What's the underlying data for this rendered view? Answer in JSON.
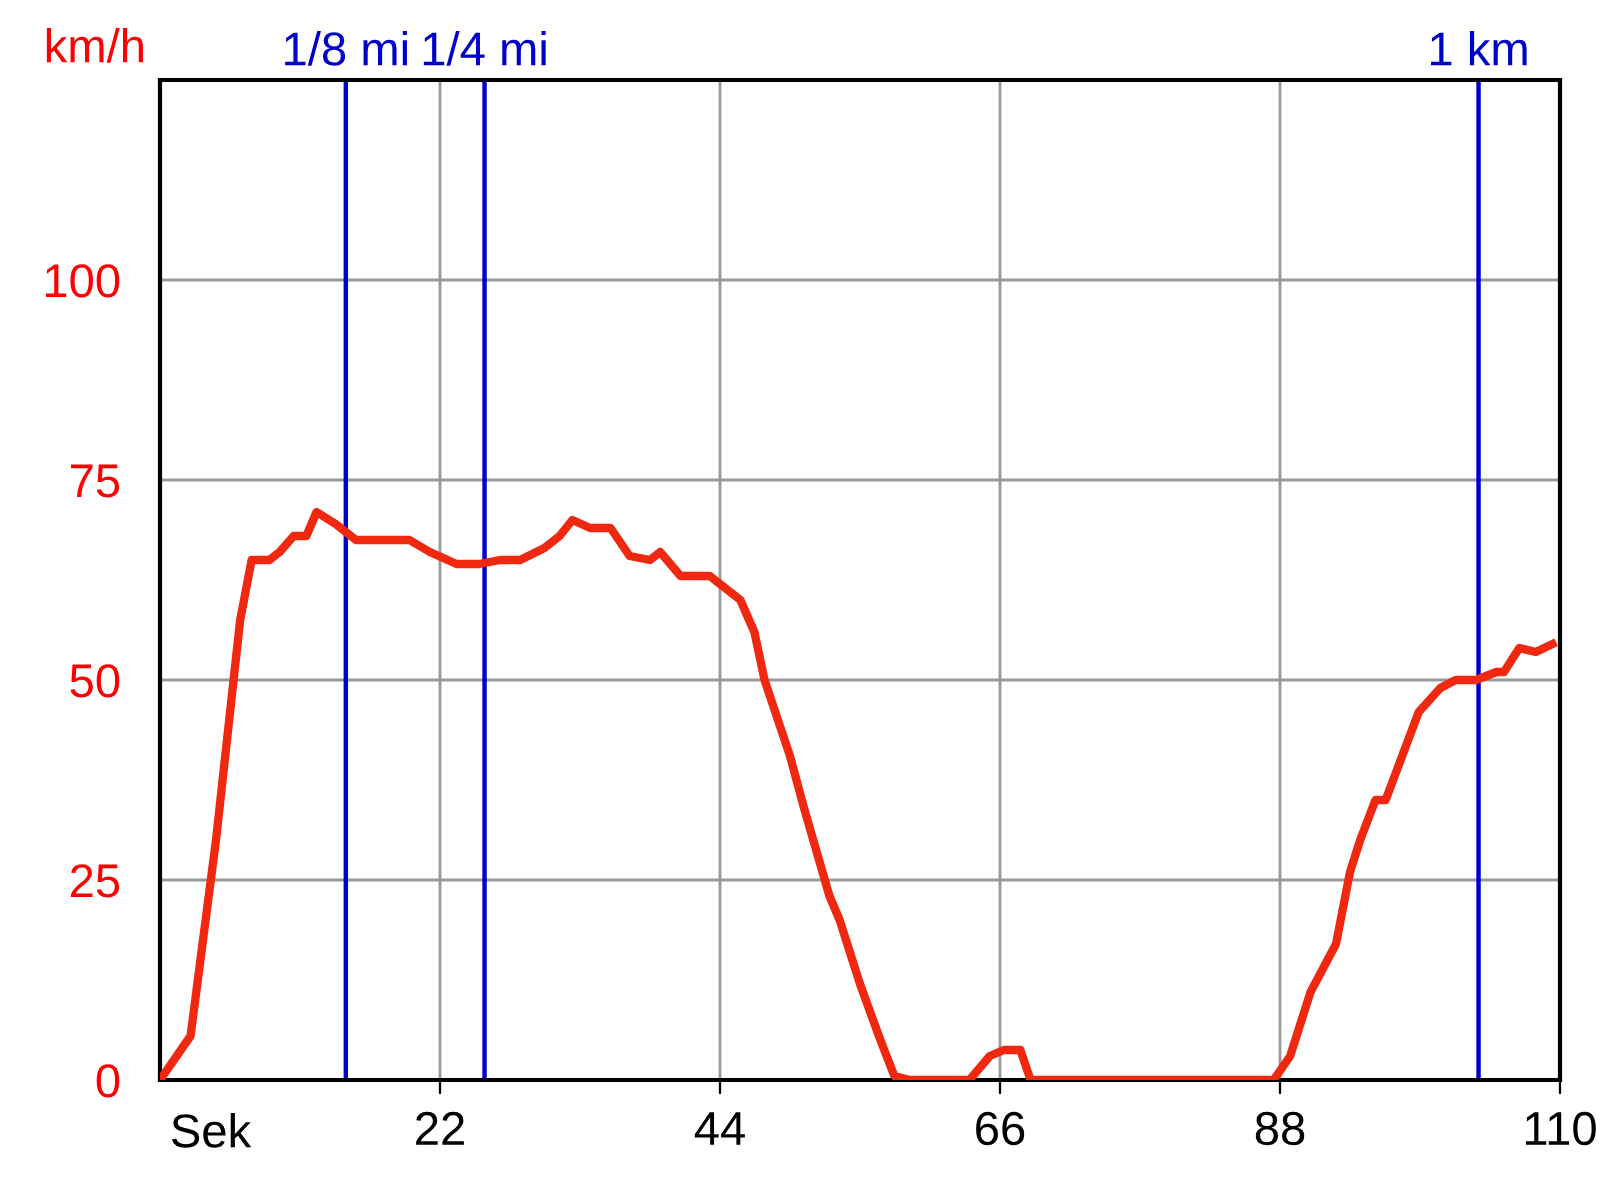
{
  "chart_data": {
    "type": "line",
    "xlabel": "Sek",
    "ylabel": "km/h",
    "x": [
      0,
      2.4,
      4.4,
      6.3,
      7.2,
      8.6,
      9.4,
      10.5,
      11.5,
      12.3,
      13.8,
      15.4,
      19.6,
      21.2,
      23.3,
      25.1,
      26.7,
      28.3,
      30.2,
      31.4,
      32.4,
      33.8,
      35.4,
      36.9,
      38.5,
      39.3,
      40.9,
      43.2,
      45.6,
      46.7,
      47.5,
      49.5,
      50.6,
      52.6,
      53.4,
      55,
      56.6,
      57.7,
      58.9,
      63.6,
      65.2,
      66.3,
      67.6,
      68.4,
      87.5,
      88.8,
      90.4,
      92.4,
      93.5,
      94.3,
      95.5,
      96.3,
      98.9,
      100.6,
      101.8,
      103.4,
      105,
      105.6,
      106.8,
      108.1,
      109.4
    ],
    "series": [
      {
        "color": "#f02810",
        "values": [
          0,
          5.5,
          30,
          57.5,
          65,
          65,
          66,
          68,
          68,
          71,
          69.5,
          67.5,
          67.5,
          66,
          64.5,
          64.5,
          65,
          65,
          66.5,
          68,
          70,
          69,
          69,
          65.5,
          65,
          66,
          63,
          63,
          60,
          56,
          50,
          40.5,
          34,
          23,
          20,
          12,
          5,
          0.5,
          0,
          0,
          3,
          3.75,
          3.75,
          0,
          0,
          3,
          11,
          17,
          26,
          30,
          35,
          35,
          46,
          49,
          50,
          50,
          51,
          51,
          54,
          53.5,
          54.5
        ]
      }
    ],
    "xlim": [
      0,
      110
    ],
    "xticks": [
      22,
      44,
      66,
      88,
      110
    ],
    "ylim": [
      0,
      125
    ],
    "yticks": [
      0,
      25,
      50,
      75,
      100
    ],
    "grid": true,
    "ref_lines": [
      {
        "axis": "x",
        "value": 14.6,
        "label": "1/8 mi",
        "color": "#0000cc"
      },
      {
        "axis": "x",
        "value": 25.5,
        "label": "1/4 mi",
        "color": "#0000cc"
      },
      {
        "axis": "x",
        "value": 103.6,
        "label": "1 km",
        "color": "#0000cc"
      }
    ]
  }
}
